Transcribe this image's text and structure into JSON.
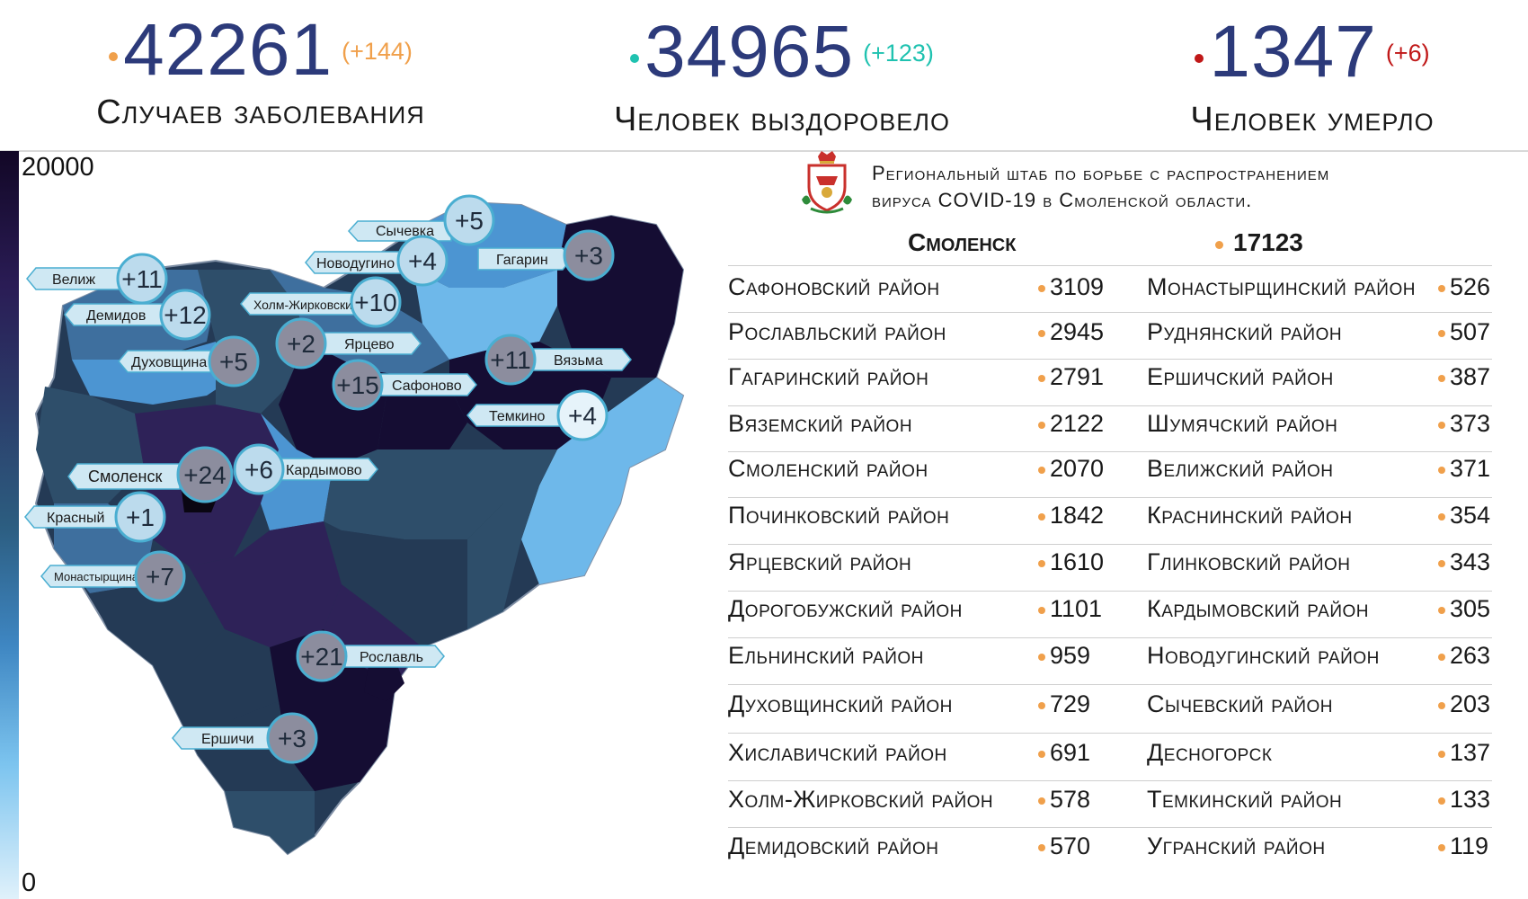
{
  "stats": {
    "cases": {
      "value": "42261",
      "delta": "(+144)",
      "label": "Случаев заболевания",
      "color": "#f0a04b"
    },
    "recovered": {
      "value": "34965",
      "delta": "(+123)",
      "label": "Человек выздоровело",
      "color": "#1fc2b0"
    },
    "deaths": {
      "value": "1347",
      "delta": "(+6)",
      "label": "Человек умерло",
      "color": "#c01818"
    }
  },
  "legend": {
    "max": "20000",
    "min": "0"
  },
  "header": {
    "line1": "Региональный штаб по борьбе с распространением",
    "line2": "вируса  COVID-19 в Смоленской области."
  },
  "city": {
    "name": "Смоленск",
    "count": "17123"
  },
  "districts_left": [
    {
      "name": "Сафоновский район",
      "value": "3109"
    },
    {
      "name": "Рославльский район",
      "value": "2945"
    },
    {
      "name": "Гагаринский район",
      "value": "2791"
    },
    {
      "name": "Вяземский район",
      "value": "2122"
    },
    {
      "name": "Смоленский район",
      "value": "2070"
    },
    {
      "name": "Починковский район",
      "value": "1842"
    },
    {
      "name": "Ярцевский район",
      "value": "1610"
    },
    {
      "name": "Дорогобужский район",
      "value": "1101"
    },
    {
      "name": "Ельнинский район",
      "value": "959"
    },
    {
      "name": "Духовщинский район",
      "value": "729"
    },
    {
      "name": "Хиславичский район",
      "value": "691"
    },
    {
      "name": "Холм-Жирковский район",
      "value": "578"
    },
    {
      "name": "Демидовский район",
      "value": "570"
    }
  ],
  "districts_right": [
    {
      "name": "Монастырщинский район",
      "value": "526"
    },
    {
      "name": "Руднянский район",
      "value": "507"
    },
    {
      "name": "Ершичский район",
      "value": "387"
    },
    {
      "name": "Шумячский район",
      "value": "373"
    },
    {
      "name": "Велижский район",
      "value": "371"
    },
    {
      "name": "Краснинский район",
      "value": "354"
    },
    {
      "name": "Глинковский район",
      "value": "343"
    },
    {
      "name": "Кардымовский район",
      "value": "305"
    },
    {
      "name": "Новодугинский район",
      "value": "263"
    },
    {
      "name": "Сычевский район",
      "value": "203"
    },
    {
      "name": "Десногорск",
      "value": "137"
    },
    {
      "name": "Темкинский район",
      "value": "133"
    },
    {
      "name": "Угранский район",
      "value": "119"
    }
  ],
  "map_markers": [
    {
      "name": "Сычевка",
      "delta": "+5"
    },
    {
      "name": "Новодугино",
      "delta": "+4"
    },
    {
      "name": "Гагарин",
      "delta": "+3"
    },
    {
      "name": "Велиж",
      "delta": "+11"
    },
    {
      "name": "Демидов",
      "delta": "+12"
    },
    {
      "name": "Холм-Жирковский",
      "delta": "+10"
    },
    {
      "name": "Ярцево",
      "delta": "+2"
    },
    {
      "name": "Духовщина",
      "delta": "+5"
    },
    {
      "name": "Вязьма",
      "delta": "+11"
    },
    {
      "name": "Сафоново",
      "delta": "+15"
    },
    {
      "name": "Темкино",
      "delta": "+4"
    },
    {
      "name": "Смоленск",
      "delta": "+24"
    },
    {
      "name": "Кардымово",
      "delta": "+6"
    },
    {
      "name": "Красный",
      "delta": "+1"
    },
    {
      "name": "Монастырщина",
      "delta": "+7"
    },
    {
      "name": "Рославль",
      "delta": "+21"
    },
    {
      "name": "Ершичи",
      "delta": "+3"
    }
  ],
  "colors": {
    "dark": "#150d33",
    "purple": "#2e2258",
    "navy": "#243a55",
    "slate": "#2e4e6a",
    "mid": "#3e6f9e",
    "blue": "#4c95d2",
    "light": "#6eb8ea",
    "pale": "#9ed3f2",
    "accent": "#f0a04b"
  }
}
